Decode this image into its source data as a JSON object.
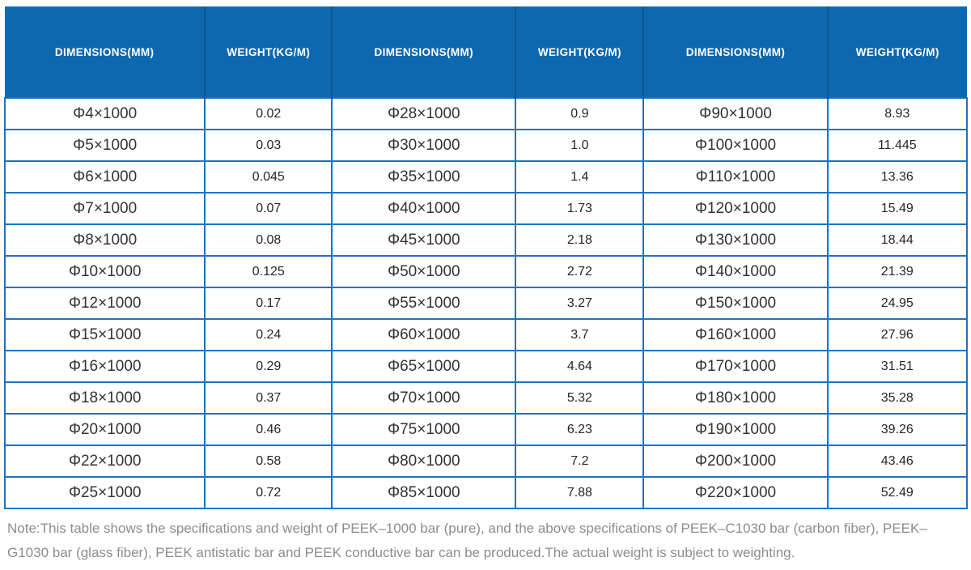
{
  "table": {
    "header_labels": [
      "DIMENSIONS(MM)",
      "WEIGHT(KG/M)",
      "DIMENSIONS(MM)",
      "WEIGHT(KG/M)",
      "DIMENSIONS(MM)",
      "WEIGHT(KG/M)"
    ],
    "rows": [
      [
        "Φ4×1000",
        "0.02",
        "Φ28×1000",
        "0.9",
        "Φ90×1000",
        "8.93"
      ],
      [
        "Φ5×1000",
        "0.03",
        "Φ30×1000",
        "1.0",
        "Φ100×1000",
        "11.445"
      ],
      [
        "Φ6×1000",
        "0.045",
        "Φ35×1000",
        "1.4",
        "Φ110×1000",
        "13.36"
      ],
      [
        "Φ7×1000",
        "0.07",
        "Φ40×1000",
        "1.73",
        "Φ120×1000",
        "15.49"
      ],
      [
        "Φ8×1000",
        "0.08",
        "Φ45×1000",
        "2.18",
        "Φ130×1000",
        "18.44"
      ],
      [
        "Φ10×1000",
        "0.125",
        "Φ50×1000",
        "2.72",
        "Φ140×1000",
        "21.39"
      ],
      [
        "Φ12×1000",
        "0.17",
        "Φ55×1000",
        "3.27",
        "Φ150×1000",
        "24.95"
      ],
      [
        "Φ15×1000",
        "0.24",
        "Φ60×1000",
        "3.7",
        "Φ160×1000",
        "27.96"
      ],
      [
        "Φ16×1000",
        "0.29",
        "Φ65×1000",
        "4.64",
        "Φ170×1000",
        "31.51"
      ],
      [
        "Φ18×1000",
        "0.37",
        "Φ70×1000",
        "5.32",
        "Φ180×1000",
        "35.28"
      ],
      [
        "Φ20×1000",
        "0.46",
        "Φ75×1000",
        "6.23",
        "Φ190×1000",
        "39.26"
      ],
      [
        "Φ22×1000",
        "0.58",
        "Φ80×1000",
        "7.2",
        "Φ200×1000",
        "43.46"
      ],
      [
        "Φ25×1000",
        "0.72",
        "Φ85×1000",
        "7.88",
        "Φ220×1000",
        "52.49"
      ]
    ]
  },
  "note": "Note:This table shows the specifications and weight of PEEK–1000 bar (pure), and the above specifications of PEEK–C1030 bar (carbon fiber), PEEK–G1030 bar (glass fiber), PEEK antistatic bar and PEEK conductive bar can be produced.The actual weight is subject to weighting.",
  "colors": {
    "header_bg": "#0E68B0",
    "header_divider": "#0B578F",
    "grid_border": "#1C72C4",
    "header_text": "#FFFFFF",
    "cell_text": "#333333",
    "note_text": "#8C8C8C"
  }
}
